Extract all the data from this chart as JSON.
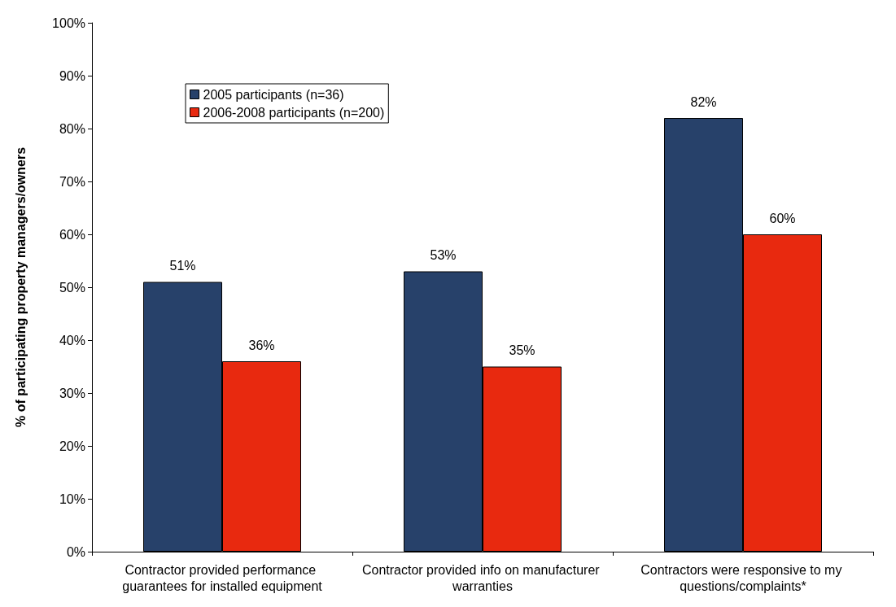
{
  "chart_data": {
    "type": "bar",
    "ylabel": "% of participating property managers/owners",
    "categories": [
      "Contractor provided performance guarantees for installed equipment",
      "Contractor provided info on manufacturer warranties",
      "Contractors were responsive to my questions/complaints*"
    ],
    "series": [
      {
        "name": "2005 participants (n=36)",
        "color": "#27416a",
        "values": [
          51,
          53,
          82
        ]
      },
      {
        "name": "2006-2008 participants (n=200)",
        "color": "#e8290f",
        "values": [
          36,
          35,
          60
        ]
      }
    ],
    "ylim": [
      0,
      100
    ],
    "yticks": [
      {
        "value": 0,
        "label": "0%"
      },
      {
        "value": 10,
        "label": "10%"
      },
      {
        "value": 20,
        "label": "20%"
      },
      {
        "value": 30,
        "label": "30%"
      },
      {
        "value": 40,
        "label": "40%"
      },
      {
        "value": 50,
        "label": "50%"
      },
      {
        "value": 60,
        "label": "60%"
      },
      {
        "value": 70,
        "label": "70%"
      },
      {
        "value": 80,
        "label": "80%"
      },
      {
        "value": 90,
        "label": "90%"
      },
      {
        "value": 100,
        "label": "100%"
      }
    ],
    "value_labels": [
      [
        "51%",
        "53%",
        "82%"
      ],
      [
        "36%",
        "35%",
        "60%"
      ]
    ],
    "grid": false,
    "legend": "top left"
  }
}
